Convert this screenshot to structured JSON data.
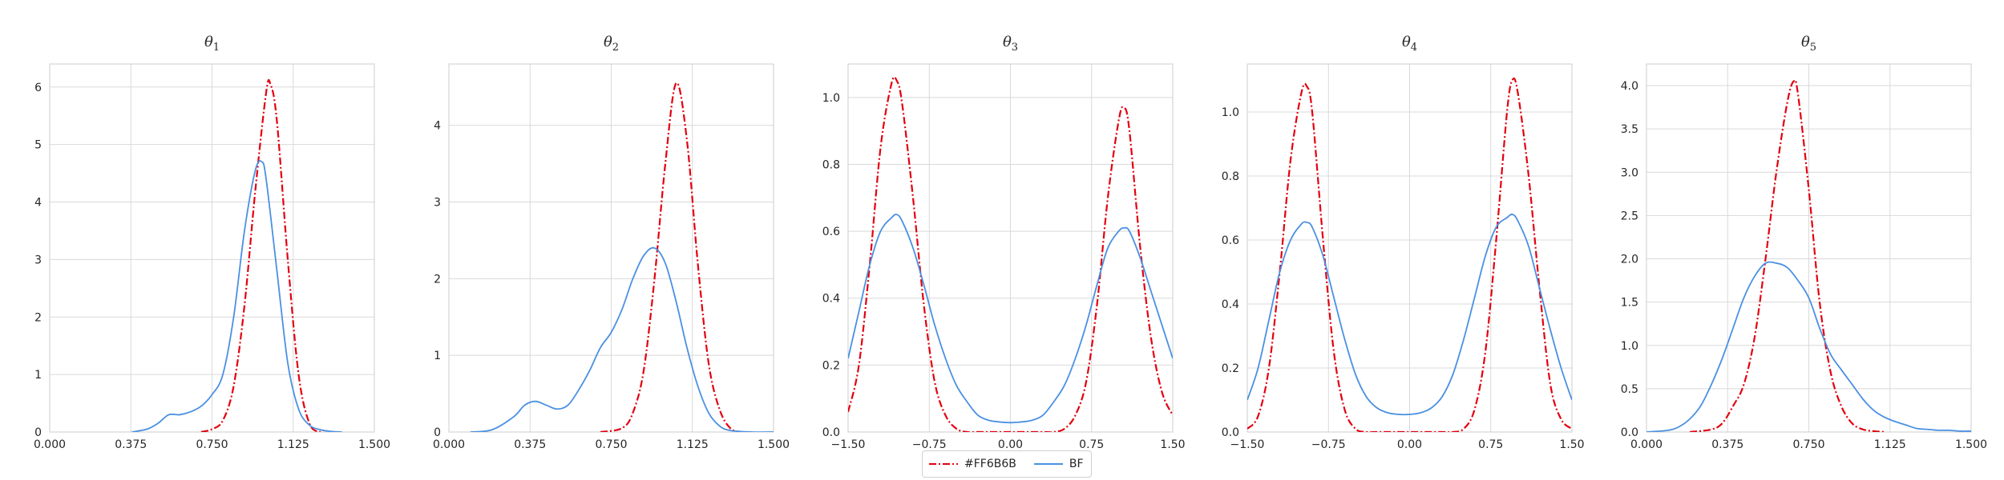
{
  "colors": {
    "reference": "#e3000f",
    "bf": "#4a90e2"
  },
  "legend": {
    "entries": [
      "#FF6B6B",
      "BF"
    ]
  },
  "chart_data": [
    {
      "type": "line",
      "title": "θ",
      "title_subscript": "1",
      "xlim": [
        0.0,
        1.5
      ],
      "ylim": [
        0,
        6.4
      ],
      "xticks": [
        "0.000",
        "0.375",
        "0.750",
        "1.125",
        "1.500"
      ],
      "yticks": [
        "0",
        "1",
        "2",
        "3",
        "4",
        "5",
        "6"
      ],
      "xtick_values": [
        0,
        0.375,
        0.75,
        1.125,
        1.5
      ],
      "ytick_values": [
        0,
        1,
        2,
        3,
        4,
        5,
        6
      ],
      "grid": true,
      "series": [
        {
          "name": "#FF6B6B",
          "style": "dashdot",
          "x": [
            0.7,
            0.75,
            0.8,
            0.85,
            0.9,
            0.95,
            1.0,
            1.02,
            1.05,
            1.1,
            1.15,
            1.2,
            1.25
          ],
          "y": [
            0,
            0.05,
            0.2,
            0.8,
            2.2,
            4.2,
            5.9,
            6.05,
            5.4,
            3.0,
            1.0,
            0.15,
            0
          ]
        },
        {
          "name": "BF",
          "style": "solid",
          "x": [
            0.38,
            0.45,
            0.5,
            0.55,
            0.6,
            0.65,
            0.7,
            0.75,
            0.8,
            0.85,
            0.9,
            0.95,
            0.98,
            1.0,
            1.05,
            1.1,
            1.15,
            1.2,
            1.25,
            1.3,
            1.35
          ],
          "y": [
            0,
            0.05,
            0.15,
            0.3,
            0.3,
            0.35,
            0.45,
            0.65,
            1.0,
            2.0,
            3.5,
            4.55,
            4.7,
            4.4,
            2.8,
            1.2,
            0.4,
            0.12,
            0.04,
            0.01,
            0
          ]
        }
      ]
    },
    {
      "type": "line",
      "title": "θ",
      "title_subscript": "2",
      "xlim": [
        0.0,
        1.5
      ],
      "ylim": [
        0,
        4.8
      ],
      "xticks": [
        "0.000",
        "0.375",
        "0.750",
        "1.125",
        "1.500"
      ],
      "yticks": [
        "0",
        "1",
        "2",
        "3",
        "4"
      ],
      "xtick_values": [
        0,
        0.375,
        0.75,
        1.125,
        1.5
      ],
      "ytick_values": [
        0,
        1,
        2,
        3,
        4
      ],
      "grid": true,
      "series": [
        {
          "name": "#FF6B6B",
          "style": "dashdot",
          "x": [
            0.7,
            0.8,
            0.85,
            0.9,
            0.95,
            1.0,
            1.05,
            1.1,
            1.15,
            1.2,
            1.25,
            1.3,
            1.35
          ],
          "y": [
            0,
            0.05,
            0.25,
            0.8,
            2.0,
            3.5,
            4.55,
            3.8,
            2.2,
            0.9,
            0.3,
            0.05,
            0
          ]
        },
        {
          "name": "BF",
          "style": "solid",
          "x": [
            0.1,
            0.2,
            0.3,
            0.35,
            0.4,
            0.45,
            0.5,
            0.55,
            0.6,
            0.65,
            0.7,
            0.75,
            0.8,
            0.85,
            0.9,
            0.95,
            1.0,
            1.05,
            1.1,
            1.15,
            1.2,
            1.25,
            1.3,
            1.4,
            1.5
          ],
          "y": [
            0,
            0.03,
            0.2,
            0.35,
            0.4,
            0.35,
            0.3,
            0.35,
            0.55,
            0.8,
            1.1,
            1.3,
            1.6,
            2.0,
            2.3,
            2.4,
            2.2,
            1.7,
            1.1,
            0.6,
            0.25,
            0.08,
            0.02,
            0,
            0
          ]
        }
      ]
    },
    {
      "type": "line",
      "title": "θ",
      "title_subscript": "3",
      "xlim": [
        -1.5,
        1.5
      ],
      "ylim": [
        0,
        1.1
      ],
      "xticks": [
        "−1.50",
        "−0.75",
        "0.00",
        "0.75",
        "1.50"
      ],
      "yticks": [
        "0.0",
        "0.2",
        "0.4",
        "0.6",
        "0.8",
        "1.0"
      ],
      "xtick_values": [
        -1.5,
        -0.75,
        0,
        0.75,
        1.5
      ],
      "ytick_values": [
        0,
        0.2,
        0.4,
        0.6,
        0.8,
        1.0
      ],
      "grid": true,
      "series": [
        {
          "name": "#FF6B6B",
          "style": "dashdot",
          "x": [
            -1.5,
            -1.4,
            -1.3,
            -1.2,
            -1.1,
            -1.05,
            -1.0,
            -0.9,
            -0.8,
            -0.7,
            -0.6,
            -0.5,
            -0.4,
            -0.3,
            0,
            0.3,
            0.4,
            0.5,
            0.6,
            0.7,
            0.8,
            0.9,
            1.0,
            1.05,
            1.1,
            1.2,
            1.3,
            1.4,
            1.5
          ],
          "y": [
            0.06,
            0.2,
            0.5,
            0.85,
            1.04,
            1.05,
            0.98,
            0.7,
            0.38,
            0.15,
            0.05,
            0.01,
            0,
            0,
            0,
            0,
            0,
            0.01,
            0.05,
            0.15,
            0.38,
            0.7,
            0.93,
            0.97,
            0.9,
            0.55,
            0.28,
            0.12,
            0.05
          ]
        },
        {
          "name": "BF",
          "style": "solid",
          "x": [
            -1.5,
            -1.4,
            -1.3,
            -1.2,
            -1.1,
            -1.05,
            -1.0,
            -0.9,
            -0.8,
            -0.7,
            -0.6,
            -0.5,
            -0.4,
            -0.3,
            -0.2,
            -0.1,
            0,
            0.1,
            0.2,
            0.3,
            0.4,
            0.5,
            0.6,
            0.7,
            0.8,
            0.9,
            1.0,
            1.05,
            1.1,
            1.2,
            1.3,
            1.4,
            1.5
          ],
          "y": [
            0.22,
            0.36,
            0.5,
            0.6,
            0.64,
            0.65,
            0.63,
            0.55,
            0.44,
            0.32,
            0.22,
            0.14,
            0.09,
            0.05,
            0.035,
            0.03,
            0.028,
            0.03,
            0.035,
            0.05,
            0.09,
            0.14,
            0.22,
            0.32,
            0.44,
            0.55,
            0.6,
            0.61,
            0.6,
            0.52,
            0.42,
            0.32,
            0.22
          ]
        }
      ]
    },
    {
      "type": "line",
      "title": "θ",
      "title_subscript": "4",
      "xlim": [
        -1.5,
        1.5
      ],
      "ylim": [
        0,
        1.15
      ],
      "xticks": [
        "−1.50",
        "−0.75",
        "0.00",
        "0.75",
        "1.50"
      ],
      "yticks": [
        "0.0",
        "0.2",
        "0.4",
        "0.6",
        "0.8",
        "1.0"
      ],
      "xtick_values": [
        -1.5,
        -0.75,
        0,
        0.75,
        1.5
      ],
      "ytick_values": [
        0,
        0.2,
        0.4,
        0.6,
        0.8,
        1.0
      ],
      "grid": true,
      "series": [
        {
          "name": "#FF6B6B",
          "style": "dashdot",
          "x": [
            -1.5,
            -1.4,
            -1.3,
            -1.2,
            -1.1,
            -1.0,
            -0.95,
            -0.9,
            -0.8,
            -0.7,
            -0.6,
            -0.5,
            -0.4,
            -0.3,
            0,
            0.3,
            0.4,
            0.5,
            0.6,
            0.7,
            0.8,
            0.9,
            0.95,
            1.0,
            1.1,
            1.2,
            1.3,
            1.4,
            1.5
          ],
          "y": [
            0.01,
            0.05,
            0.2,
            0.5,
            0.85,
            1.06,
            1.08,
            1.0,
            0.6,
            0.25,
            0.07,
            0.01,
            0,
            0,
            0,
            0,
            0,
            0.01,
            0.07,
            0.25,
            0.6,
            1.0,
            1.1,
            1.06,
            0.8,
            0.45,
            0.15,
            0.04,
            0.01
          ]
        },
        {
          "name": "BF",
          "style": "solid",
          "x": [
            -1.5,
            -1.4,
            -1.3,
            -1.2,
            -1.1,
            -1.0,
            -0.95,
            -0.9,
            -0.8,
            -0.7,
            -0.6,
            -0.5,
            -0.4,
            -0.3,
            -0.2,
            -0.1,
            0,
            0.1,
            0.2,
            0.3,
            0.4,
            0.5,
            0.6,
            0.7,
            0.8,
            0.9,
            0.95,
            1.0,
            1.1,
            1.2,
            1.3,
            1.4,
            1.5
          ],
          "y": [
            0.1,
            0.2,
            0.35,
            0.5,
            0.6,
            0.65,
            0.655,
            0.64,
            0.55,
            0.42,
            0.29,
            0.18,
            0.11,
            0.075,
            0.06,
            0.055,
            0.055,
            0.06,
            0.075,
            0.11,
            0.18,
            0.29,
            0.42,
            0.55,
            0.64,
            0.67,
            0.68,
            0.66,
            0.58,
            0.45,
            0.32,
            0.2,
            0.1
          ]
        }
      ]
    },
    {
      "type": "line",
      "title": "θ",
      "title_subscript": "5",
      "xlim": [
        0.0,
        1.5
      ],
      "ylim": [
        0,
        4.25
      ],
      "xticks": [
        "0.000",
        "0.375",
        "0.750",
        "1.125",
        "1.500"
      ],
      "yticks": [
        "0.0",
        "0.5",
        "1.0",
        "1.5",
        "2.0",
        "2.5",
        "3.0",
        "3.5",
        "4.0"
      ],
      "xtick_values": [
        0,
        0.375,
        0.75,
        1.125,
        1.5
      ],
      "ytick_values": [
        0,
        0.5,
        1.0,
        1.5,
        2.0,
        2.5,
        3.0,
        3.5,
        4.0
      ],
      "grid": true,
      "series": [
        {
          "name": "#FF6B6B",
          "style": "dashdot",
          "x": [
            0.2,
            0.3,
            0.35,
            0.4,
            0.45,
            0.5,
            0.55,
            0.6,
            0.65,
            0.68,
            0.7,
            0.75,
            0.8,
            0.85,
            0.9,
            0.95,
            1.0,
            1.05,
            1.1
          ],
          "y": [
            0,
            0.03,
            0.1,
            0.3,
            0.55,
            1.1,
            2.0,
            3.0,
            3.8,
            4.05,
            3.9,
            2.8,
            1.5,
            0.7,
            0.3,
            0.1,
            0.03,
            0.01,
            0
          ]
        },
        {
          "name": "BF",
          "style": "solid",
          "x": [
            0.0,
            0.1,
            0.15,
            0.2,
            0.25,
            0.3,
            0.35,
            0.4,
            0.45,
            0.5,
            0.55,
            0.6,
            0.65,
            0.7,
            0.75,
            0.8,
            0.85,
            0.9,
            0.95,
            1.0,
            1.05,
            1.1,
            1.15,
            1.2,
            1.25,
            1.3,
            1.35,
            1.4,
            1.45,
            1.5
          ],
          "y": [
            0,
            0.02,
            0.06,
            0.15,
            0.3,
            0.55,
            0.85,
            1.2,
            1.55,
            1.8,
            1.95,
            1.95,
            1.9,
            1.75,
            1.55,
            1.2,
            0.9,
            0.72,
            0.55,
            0.38,
            0.25,
            0.17,
            0.12,
            0.08,
            0.04,
            0.03,
            0.02,
            0.02,
            0.01,
            0.01
          ]
        }
      ]
    }
  ]
}
